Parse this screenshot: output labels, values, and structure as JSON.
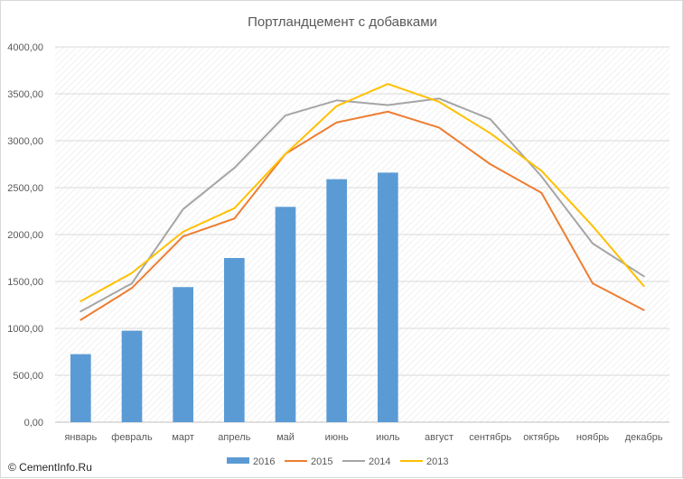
{
  "chart_data": {
    "type": "bar",
    "title": "Портландцемент с добавками",
    "xlabel": "",
    "ylabel": "",
    "categories": [
      "январь",
      "февраль",
      "март",
      "апрель",
      "май",
      "июнь",
      "июль",
      "август",
      "сентябрь",
      "октябрь",
      "ноябрь",
      "декабрь"
    ],
    "ylim": [
      0,
      4000
    ],
    "yticks": [
      "0,00",
      "500,00",
      "1000,00",
      "1500,00",
      "2000,00",
      "2500,00",
      "3000,00",
      "3500,00",
      "4000,00"
    ],
    "grid": "diagonal hatch background",
    "legend_position": "bottom",
    "series": [
      {
        "name": "2016",
        "kind": "bar",
        "color": "#5b9bd5",
        "values": [
          725,
          975,
          1440,
          1750,
          2295,
          2590,
          2660,
          null,
          null,
          null,
          null,
          null
        ]
      },
      {
        "name": "2015",
        "kind": "line",
        "color": "#ed7d31",
        "values": [
          1090,
          1430,
          1980,
          2170,
          2860,
          3195,
          3310,
          3140,
          2750,
          2445,
          1480,
          1195
        ]
      },
      {
        "name": "2014",
        "kind": "line",
        "color": "#a5a5a5",
        "values": [
          1180,
          1480,
          2270,
          2710,
          3270,
          3430,
          3380,
          3450,
          3230,
          2620,
          1905,
          1555
        ]
      },
      {
        "name": "2013",
        "kind": "line",
        "color": "#ffc000",
        "values": [
          1290,
          1590,
          2030,
          2280,
          2860,
          3370,
          3605,
          3415,
          3080,
          2680,
          2090,
          1450
        ]
      }
    ]
  },
  "footer": {
    "credit": "© CementInfo.Ru"
  }
}
